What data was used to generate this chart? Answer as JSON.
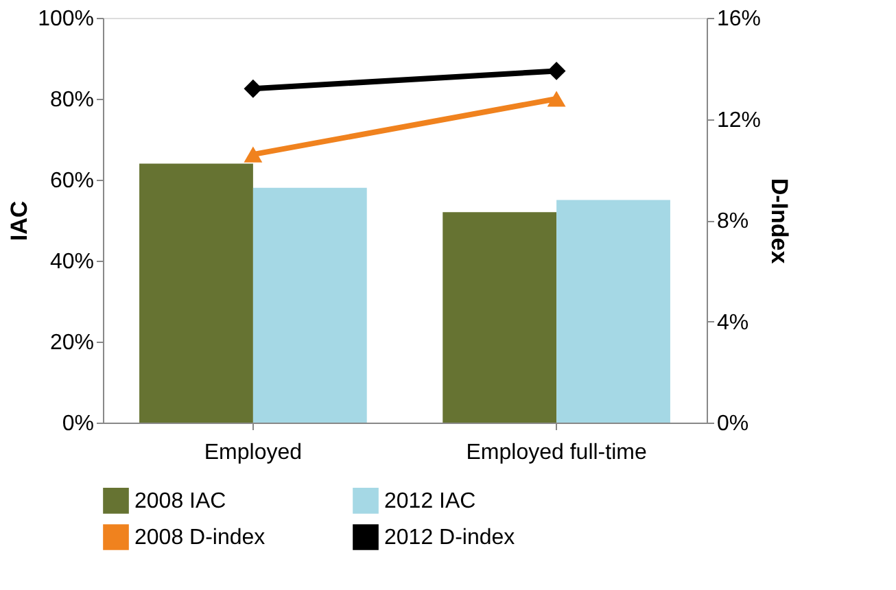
{
  "chart_data": {
    "type": "bar",
    "ylabel": "IAC",
    "y2label": "D-Index",
    "categories": [
      "Employed",
      "Employed full-time"
    ],
    "series": [
      {
        "name": "2008 IAC",
        "color": "#667332",
        "values": [
          64,
          52
        ]
      },
      {
        "name": "2012 IAC",
        "color": "#a5d8e5",
        "values": [
          58,
          55
        ]
      },
      {
        "name": "2008 D-index",
        "type": "line",
        "axis": "y2",
        "marker": "triangle",
        "color": "#f0821e",
        "values": [
          10.6,
          12.8
        ]
      },
      {
        "name": "2012 D-index",
        "type": "line",
        "axis": "y2",
        "marker": "diamond",
        "color": "#000000",
        "values": [
          13.2,
          13.9
        ]
      }
    ],
    "ylim": [
      0,
      100
    ],
    "yticks": [
      {
        "value": 0,
        "label": "0%"
      },
      {
        "value": 20,
        "label": "20%"
      },
      {
        "value": 40,
        "label": "40%"
      },
      {
        "value": 60,
        "label": "60%"
      },
      {
        "value": 80,
        "label": "80%"
      },
      {
        "value": 100,
        "label": "100%"
      }
    ],
    "y2lim": [
      0,
      16
    ],
    "y2ticks": [
      {
        "value": 0,
        "label": "0%"
      },
      {
        "value": 4,
        "label": "4%"
      },
      {
        "value": 8,
        "label": "8%"
      },
      {
        "value": 12,
        "label": "12%"
      },
      {
        "value": 16,
        "label": "16%"
      }
    ],
    "legend": "bottom",
    "grid": false
  }
}
